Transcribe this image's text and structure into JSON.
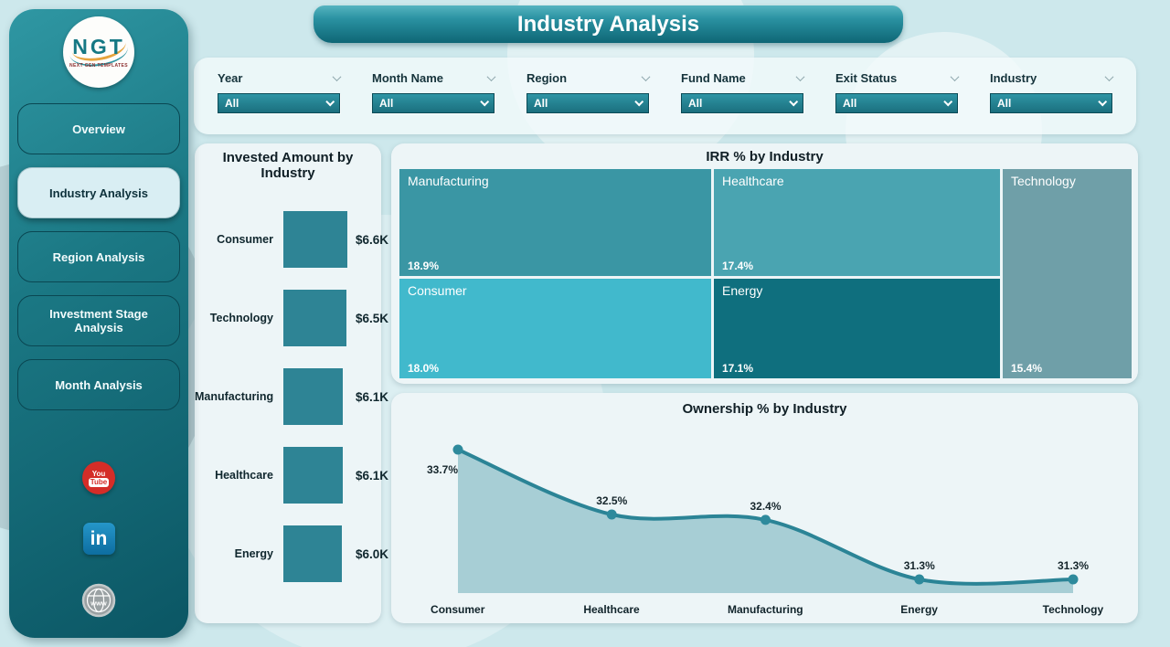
{
  "page": {
    "title": "Industry Analysis"
  },
  "sidebar": {
    "logo": {
      "text": "NGT",
      "subtext": "NEXT GEN TEMPLATES"
    },
    "items": [
      {
        "label": "Overview",
        "active": false
      },
      {
        "label": "Industry Analysis",
        "active": true
      },
      {
        "label": "Region Analysis",
        "active": false
      },
      {
        "label": "Investment Stage Analysis",
        "active": false
      },
      {
        "label": "Month Analysis",
        "active": false
      }
    ],
    "social": [
      {
        "name": "youtube",
        "text_top": "You",
        "text_bottom": "Tube"
      },
      {
        "name": "linkedin",
        "text": "in"
      },
      {
        "name": "website",
        "text": "www"
      }
    ]
  },
  "filters": [
    {
      "label": "Year",
      "value": "All"
    },
    {
      "label": "Month Name",
      "value": "All"
    },
    {
      "label": "Region",
      "value": "All"
    },
    {
      "label": "Fund Name",
      "value": "All"
    },
    {
      "label": "Exit Status",
      "value": "All"
    },
    {
      "label": "Industry",
      "value": "All"
    }
  ],
  "colors": {
    "bar": "#2e8495",
    "line": "#2b8496",
    "marker": "#2e8a9c",
    "area": "#a7ced5",
    "dropdown": "#22808f",
    "sidebar_dark": "#0b5664",
    "sidebar_light": "#2f97a3"
  },
  "chart_data": [
    {
      "type": "bar",
      "title": "Invested Amount by Industry",
      "orientation": "horizontal",
      "categories": [
        "Consumer",
        "Technology",
        "Manufacturing",
        "Healthcare",
        "Energy"
      ],
      "values": [
        6.6,
        6.5,
        6.1,
        6.1,
        6.0
      ],
      "value_labels": [
        "$6.6K",
        "$6.5K",
        "$6.1K",
        "$6.1K",
        "$6.0K"
      ],
      "unit": "USD thousands",
      "xlim": [
        0,
        6.6
      ]
    },
    {
      "type": "heatmap",
      "subtype": "treemap",
      "title": "IRR % by Industry",
      "items": [
        {
          "name": "Manufacturing",
          "value": 18.9,
          "value_label": "18.9%",
          "color": "#3a96a4"
        },
        {
          "name": "Healthcare",
          "value": 17.4,
          "value_label": "17.4%",
          "color": "#4aa4b1"
        },
        {
          "name": "Technology",
          "value": 15.4,
          "value_label": "15.4%",
          "color": "#6f9fa8"
        },
        {
          "name": "Consumer",
          "value": 18.0,
          "value_label": "18.0%",
          "color": "#41b9cc"
        },
        {
          "name": "Energy",
          "value": 17.1,
          "value_label": "17.1%",
          "color": "#0f6f7e"
        }
      ]
    },
    {
      "type": "area",
      "title": "Ownership % by Industry",
      "categories": [
        "Consumer",
        "Healthcare",
        "Manufacturing",
        "Energy",
        "Technology"
      ],
      "values": [
        33.7,
        32.5,
        32.4,
        31.3,
        31.3
      ],
      "value_labels": [
        "33.7%",
        "32.5%",
        "32.4%",
        "31.3%",
        "31.3%"
      ],
      "ylim": [
        31.3,
        33.7
      ],
      "smooth": true,
      "markers": true,
      "grid": false
    }
  ]
}
